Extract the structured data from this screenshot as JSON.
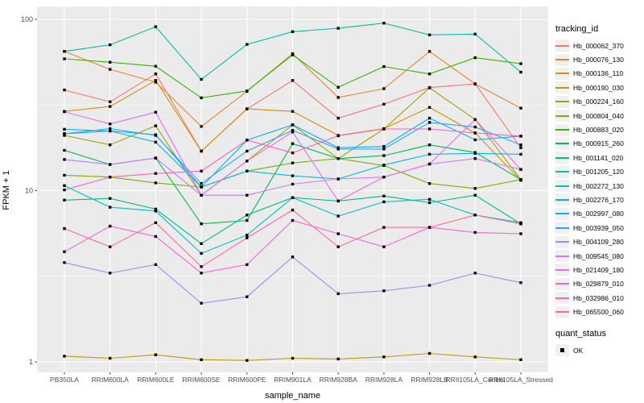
{
  "chart_data": {
    "type": "line",
    "xlabel": "sample_name",
    "ylabel": "FPKM + 1",
    "y_scale": "log10",
    "y_ticks": [
      1,
      10,
      100
    ],
    "y_minor": [
      3.162,
      31.62
    ],
    "ylim": [
      0.87,
      119
    ],
    "grid": true,
    "panel_bg": "#EBEBEB",
    "grid_color": "#FFFFFF",
    "axis_text_color": "#4D4D4D",
    "point_marker": "black-square",
    "legend_title": "tracking_id",
    "legend2_title": "quant_status",
    "legend2_items": [
      {
        "label": "OK",
        "marker": "black-square"
      }
    ],
    "categories": [
      "PB350LA",
      "RRIM600LA",
      "RRIM600LE",
      "RRIM600SE",
      "RRIM600PE",
      "RRIM901LA",
      "RRIM928BA",
      "RRIM928LA",
      "RRIM928LB",
      "RRII105LA_Control",
      "RRII105LA_Stressed"
    ],
    "series": [
      {
        "name": "Hb_000062_370",
        "color": "#F8766D",
        "values": [
          38.7,
          33,
          48,
          17,
          30,
          44,
          26.5,
          32,
          40,
          42,
          17.8
        ]
      },
      {
        "name": "Hb_000076_130",
        "color": "#EA8331",
        "values": [
          65,
          51,
          43,
          23.7,
          38,
          63,
          35,
          39.4,
          65,
          42,
          30.3
        ]
      },
      {
        "name": "Hb_000136_110",
        "color": "#D89000",
        "values": [
          29,
          31,
          44,
          17,
          30,
          29,
          21,
          23,
          30.6,
          21.7,
          11.5
        ]
      },
      {
        "name": "Hb_000190_030",
        "color": "#C09B00",
        "values": [
          1.08,
          1.05,
          1.1,
          1.03,
          1.02,
          1.05,
          1.04,
          1.07,
          1.12,
          1.07,
          1.03
        ]
      },
      {
        "name": "Hb_000224_160",
        "color": "#A3A500",
        "values": [
          21,
          18.5,
          23.9,
          9.4,
          14.9,
          24.2,
          15.4,
          22.9,
          39.8,
          26,
          11.6
        ]
      },
      {
        "name": "Hb_000804_040",
        "color": "#7CAE00",
        "values": [
          12.3,
          12,
          11.1,
          10.5,
          13,
          14.5,
          15.4,
          14,
          11,
          10.3,
          11.6
        ]
      },
      {
        "name": "Hb_000883_020",
        "color": "#39B600",
        "values": [
          58.8,
          56.2,
          53.2,
          34.8,
          38.2,
          62,
          40.1,
          53,
          48,
          59.7,
          55.1
        ]
      },
      {
        "name": "Hb_000915_260",
        "color": "#00BB4E",
        "values": [
          17.2,
          14.2,
          15.5,
          6.4,
          6.7,
          18.8,
          15.4,
          16,
          18.5,
          16.7,
          11.6
        ]
      },
      {
        "name": "Hb_001141_020",
        "color": "#00BF7D",
        "values": [
          8.8,
          9,
          7.8,
          4.9,
          7.2,
          9.1,
          8.7,
          9.3,
          8.5,
          9.4,
          6.4
        ]
      },
      {
        "name": "Hb_001205_120",
        "color": "#00C1A3",
        "values": [
          65,
          71,
          90.6,
          44.6,
          71.4,
          84.7,
          88.7,
          95,
          81.1,
          82,
          49.2
        ]
      },
      {
        "name": "Hb_002272_130",
        "color": "#00BFC4",
        "values": [
          10.7,
          8,
          7.6,
          4.3,
          5.5,
          9.1,
          7.1,
          8.6,
          8.9,
          7.2,
          6.5
        ]
      },
      {
        "name": "Hb_002276_170",
        "color": "#00BAE0",
        "values": [
          21.5,
          22.3,
          19.2,
          10.5,
          13,
          12.2,
          11.7,
          14.1,
          16.3,
          16.5,
          16.3
        ]
      },
      {
        "name": "Hb_002997_080",
        "color": "#00B0F6",
        "values": [
          22.8,
          22.3,
          21.2,
          10.5,
          19.7,
          24.2,
          17.8,
          18.1,
          26.5,
          19.8,
          20.8
        ]
      },
      {
        "name": "Hb_003939_050",
        "color": "#35A2FF",
        "values": [
          21.5,
          23,
          21,
          11,
          17,
          22.5,
          17.5,
          17.5,
          25,
          23.5,
          18.5
        ]
      },
      {
        "name": "Hb_004109_280",
        "color": "#9590FF",
        "values": [
          3.8,
          3.3,
          3.7,
          2.2,
          2.4,
          4.1,
          2.5,
          2.6,
          2.8,
          3.3,
          2.9
        ]
      },
      {
        "name": "Hb_009545_080",
        "color": "#C77CFF",
        "values": [
          15.2,
          14.2,
          15.5,
          9.4,
          9.4,
          10.9,
          11.7,
          12,
          14.3,
          15.4,
          13.3
        ]
      },
      {
        "name": "Hb_021409_180",
        "color": "#E76BF3",
        "values": [
          28.9,
          24.5,
          28.7,
          9.4,
          14.9,
          22,
          8.7,
          12,
          14.3,
          26,
          13.3
        ]
      },
      {
        "name": "Hb_029879_010",
        "color": "#FA62DB",
        "values": [
          4.4,
          6.2,
          5.4,
          3.3,
          3.7,
          6.7,
          5.6,
          4.7,
          6.1,
          5.7,
          5.6
        ]
      },
      {
        "name": "Hb_032986_010",
        "color": "#FF62BC",
        "values": [
          10.1,
          12,
          12.6,
          13,
          19.7,
          16.6,
          20.9,
          22.9,
          22.9,
          21.7,
          20.8
        ]
      },
      {
        "name": "Hb_065500_060",
        "color": "#FF6A98",
        "values": [
          6,
          4.7,
          6.5,
          3.6,
          5.3,
          7.7,
          4.7,
          6.1,
          6.1,
          7.2,
          6.4
        ]
      }
    ]
  }
}
